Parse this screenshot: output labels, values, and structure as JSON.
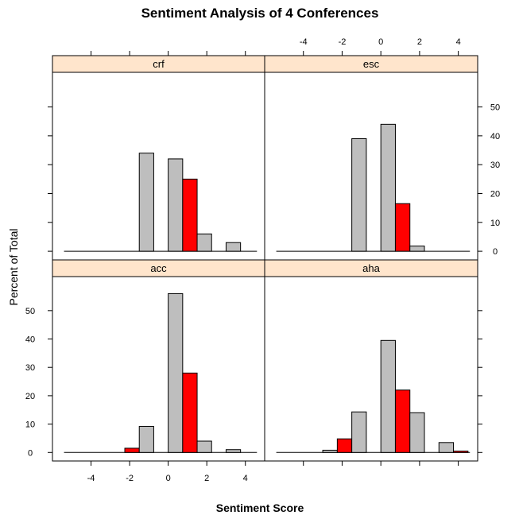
{
  "chart_data": {
    "type": "bar",
    "title": "Sentiment Analysis of 4 Conferences",
    "xlabel": "Sentiment Score",
    "ylabel": "Percent of Total",
    "xlim": [
      -6,
      5
    ],
    "ylim": [
      -3,
      62
    ],
    "x_ticks": [
      -4,
      -2,
      0,
      2,
      4
    ],
    "x_tick_labels": [
      "-4",
      "-2",
      "0",
      "2",
      "4"
    ],
    "y_ticks": [
      0,
      10,
      20,
      30,
      40,
      50
    ],
    "y_tick_labels": [
      "0",
      "10",
      "20",
      "30",
      "40",
      "50"
    ],
    "bin_width": 0.75,
    "baseline_range": [
      -5.4,
      4.6
    ],
    "colors": {
      "default": "#bebebe",
      "highlight": "#ff0000",
      "strip": "#ffe5cc"
    },
    "panels": [
      {
        "name": "crf",
        "bars": [
          {
            "x": -1.5,
            "value": 34,
            "highlight": false
          },
          {
            "x": 0,
            "value": 32,
            "highlight": false
          },
          {
            "x": 0.75,
            "value": 25,
            "highlight": true
          },
          {
            "x": 1.5,
            "value": 6,
            "highlight": false
          },
          {
            "x": 3,
            "value": 3,
            "highlight": false
          }
        ]
      },
      {
        "name": "esc",
        "bars": [
          {
            "x": -1.5,
            "value": 39,
            "highlight": false
          },
          {
            "x": 0,
            "value": 44,
            "highlight": false
          },
          {
            "x": 0.75,
            "value": 16.5,
            "highlight": true
          },
          {
            "x": 1.5,
            "value": 1.8,
            "highlight": false
          }
        ]
      },
      {
        "name": "acc",
        "bars": [
          {
            "x": -2.25,
            "value": 1.5,
            "highlight": true
          },
          {
            "x": -1.5,
            "value": 9.2,
            "highlight": false
          },
          {
            "x": 0,
            "value": 56,
            "highlight": false
          },
          {
            "x": 0.75,
            "value": 28,
            "highlight": true
          },
          {
            "x": 1.5,
            "value": 4,
            "highlight": false
          },
          {
            "x": 3,
            "value": 1,
            "highlight": false
          }
        ]
      },
      {
        "name": "aha",
        "bars": [
          {
            "x": -3,
            "value": 0.8,
            "highlight": false
          },
          {
            "x": -2.25,
            "value": 4.8,
            "highlight": true
          },
          {
            "x": -1.5,
            "value": 14.3,
            "highlight": false
          },
          {
            "x": 0,
            "value": 39.5,
            "highlight": false
          },
          {
            "x": 0.75,
            "value": 22,
            "highlight": true
          },
          {
            "x": 1.5,
            "value": 14,
            "highlight": false
          },
          {
            "x": 3,
            "value": 3.5,
            "highlight": false
          },
          {
            "x": 3.75,
            "value": 0.5,
            "highlight": true
          }
        ]
      }
    ]
  }
}
